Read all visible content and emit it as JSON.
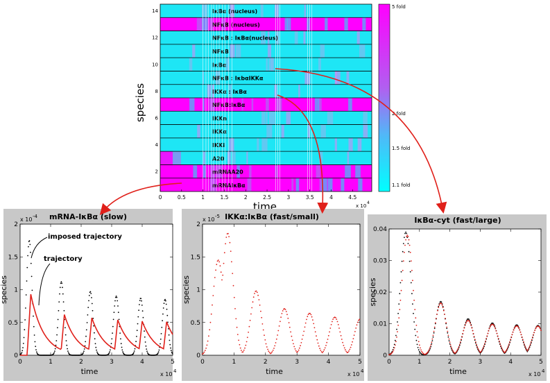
{
  "heatmap": {
    "ylabel": "species",
    "xlabel": "time",
    "x_exponent": "x 10",
    "x_exponent_power": "4",
    "xticks": [
      "0",
      "0.5",
      "1",
      "1.5",
      "2",
      "2.5",
      "3",
      "3.5",
      "4",
      "4.5"
    ],
    "xtick_values": [
      0,
      0.5,
      1,
      1.5,
      2,
      2.5,
      3,
      3.5,
      4,
      4.5
    ],
    "xlim": [
      0,
      4.95
    ],
    "yticks": [
      "2",
      "4",
      "6",
      "8",
      "10",
      "12",
      "14"
    ],
    "ytick_values": [
      2,
      4,
      6,
      8,
      10,
      12,
      14
    ],
    "rows": [
      {
        "label": "IκBα (nucleus)",
        "pattern": "cyan"
      },
      {
        "label": "NFκB (nucleus)",
        "pattern": "magenta"
      },
      {
        "label": "NFκB : IκBα(nucleus)",
        "pattern": "cyan"
      },
      {
        "label": "NFκB",
        "pattern": "cyan"
      },
      {
        "label": "IκBα",
        "pattern": "cyan"
      },
      {
        "label": "NFκB : IκbαIKKα",
        "pattern": "cyan"
      },
      {
        "label": "IKKα : IκBα",
        "pattern": "cyan"
      },
      {
        "label": "NFκB:IκBα",
        "pattern": "magenta"
      },
      {
        "label": "IKKn",
        "pattern": "cyan"
      },
      {
        "label": "IKKα",
        "pattern": "cyan"
      },
      {
        "label": "IKKi",
        "pattern": "cyan"
      },
      {
        "label": "A20",
        "pattern": "gradient"
      },
      {
        "label": "mRNAA20",
        "pattern": "magenta"
      },
      {
        "label": "mRNAIκBα",
        "pattern": "magenta"
      }
    ],
    "colorbar": {
      "labels": [
        "5 fold",
        "2 fold",
        "1.5 fold",
        "1.1 fold"
      ],
      "colors": [
        "#ff00ff",
        "#00ffff"
      ]
    }
  },
  "colors": {
    "cyan": "#1ee6f5",
    "magenta": "#ff00ff",
    "panel_bg": "#c8c8c8",
    "arrow": "#e0201a",
    "trajectory": "#e0201a",
    "imposed": "#000000"
  },
  "panels": [
    {
      "title": "mRNA-IκBα (slow)",
      "ylabel": "species",
      "xlabel": "time",
      "y_exponent": "x 10",
      "y_exponent_power": "-4",
      "x_exponent": "x 10",
      "x_exponent_power": "4",
      "yticks": [
        "0",
        "0.5",
        "1",
        "1.5",
        "2"
      ],
      "xticks": [
        "0",
        "1",
        "2",
        "3",
        "4",
        "5"
      ],
      "annotations": [
        "imposed trajectory",
        "trajectory"
      ]
    },
    {
      "title": "IKKα:IκBα (fast/small)",
      "ylabel": "species",
      "xlabel": "time",
      "y_exponent": "x 10",
      "y_exponent_power": "-5",
      "x_exponent": "x 10",
      "x_exponent_power": "4",
      "yticks": [
        "0",
        "0.5",
        "1",
        "1.5",
        "2"
      ],
      "xticks": [
        "0",
        "1",
        "2",
        "3",
        "4",
        "5"
      ]
    },
    {
      "title": "IκBα-cyt (fast/large)",
      "ylabel": "species",
      "xlabel": "time",
      "x_exponent": "x 10",
      "x_exponent_power": "4",
      "yticks": [
        "0",
        "0.01",
        "0.02",
        "0.03",
        "0.04"
      ],
      "xticks": [
        "0",
        "1",
        "2",
        "3",
        "4",
        "5"
      ]
    }
  ],
  "chart_data": [
    {
      "type": "line",
      "title": "mRNA-IκBα (slow)",
      "xlabel": "time",
      "ylabel": "species",
      "xlim": [
        0,
        50000
      ],
      "ylim": [
        0,
        0.0002
      ],
      "series": [
        {
          "name": "imposed trajectory",
          "style": "dots",
          "color": "#000000",
          "peaks": [
            [
              3000,
              0.000175
            ],
            [
              13500,
              0.000112
            ],
            [
              23000,
              9.7e-05
            ],
            [
              31500,
              9e-05
            ],
            [
              39500,
              8.7e-05
            ],
            [
              47500,
              8.5e-05
            ]
          ]
        },
        {
          "name": "trajectory",
          "style": "line",
          "color": "#e0201a",
          "peaks": [
            [
              3500,
              9.3e-05
            ],
            [
              14500,
              6.2e-05
            ],
            [
              23500,
              5.7e-05
            ],
            [
              32000,
              5.4e-05
            ],
            [
              40000,
              5.2e-05
            ],
            [
              48000,
              5.1e-05
            ]
          ]
        }
      ]
    },
    {
      "type": "line",
      "title": "IKKα:IκBα (fast/small)",
      "xlabel": "time",
      "ylabel": "species",
      "xlim": [
        0,
        50000
      ],
      "ylim": [
        0,
        2e-05
      ],
      "series": [
        {
          "name": "trajectory",
          "style": "dots",
          "color": "#e0201a",
          "peaks": [
            [
              5000,
              1.45e-05
            ],
            [
              8000,
              1.86e-05
            ],
            [
              17000,
              9.8e-06
            ],
            [
              26000,
              7.1e-06
            ],
            [
              34000,
              6.4e-06
            ],
            [
              42000,
              5.8e-06
            ],
            [
              50000,
              5.5e-06
            ]
          ]
        }
      ]
    },
    {
      "type": "line",
      "title": "IκBα-cyt (fast/large)",
      "xlabel": "time",
      "ylabel": "species",
      "xlim": [
        0,
        50000
      ],
      "ylim": [
        0,
        0.04
      ],
      "series": [
        {
          "name": "imposed trajectory",
          "style": "dots",
          "color": "#000000",
          "peaks": [
            [
              5500,
              0.039
            ],
            [
              17000,
              0.017
            ],
            [
              26000,
              0.0115
            ],
            [
              34000,
              0.0102
            ],
            [
              42000,
              0.0096
            ],
            [
              49000,
              0.0094
            ]
          ]
        },
        {
          "name": "trajectory",
          "style": "dots",
          "color": "#e0201a",
          "peaks": [
            [
              6000,
              0.038
            ],
            [
              17000,
              0.0165
            ],
            [
              26000,
              0.011
            ],
            [
              34000,
              0.0098
            ],
            [
              42000,
              0.0093
            ],
            [
              49000,
              0.0092
            ]
          ]
        }
      ]
    }
  ]
}
